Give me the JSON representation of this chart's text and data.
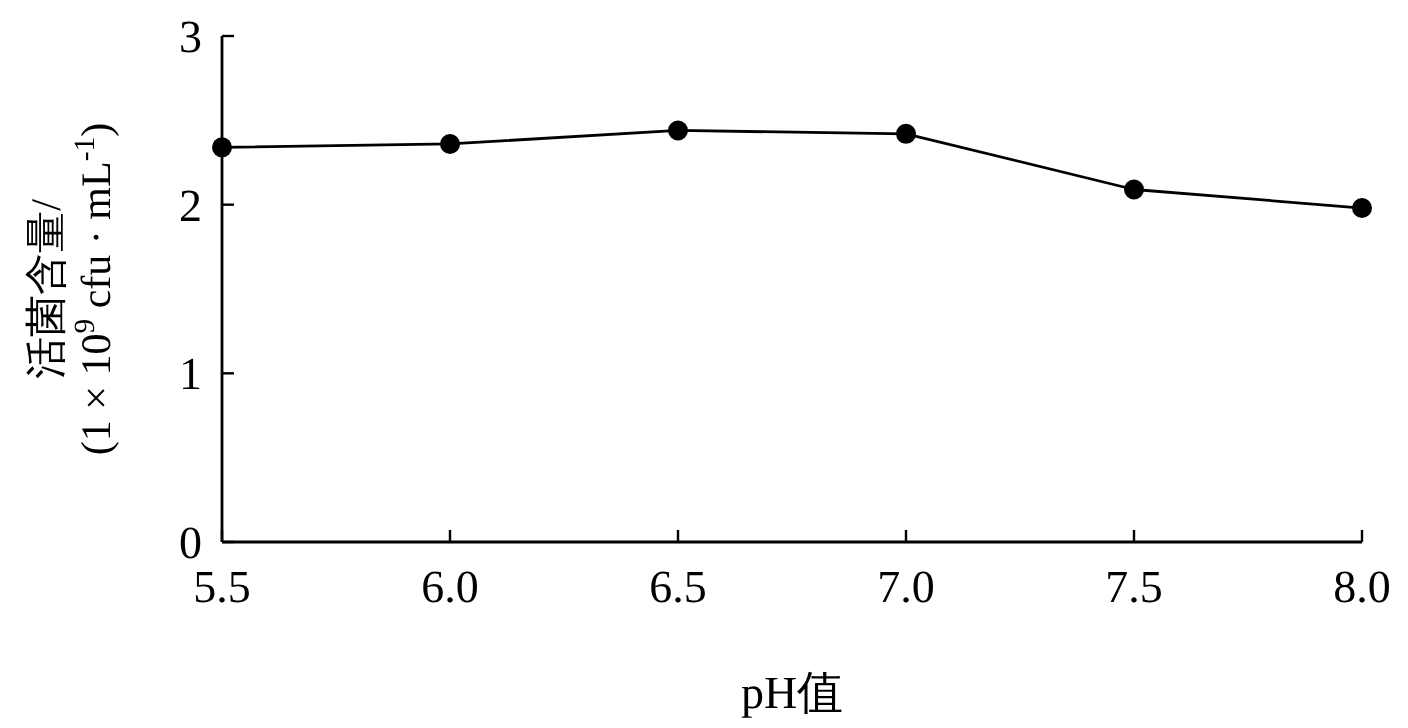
{
  "chart_data": {
    "type": "line",
    "xlabel": "pH值",
    "ylabel": "活菌含量/\n(1 × 10$^{9}$ cfu · mL$^{-1}$)",
    "x": [
      5.5,
      6.0,
      6.5,
      7.0,
      7.5,
      8.0
    ],
    "series": [
      {
        "color": "#000000",
        "values": [
          2.34,
          2.36,
          2.44,
          2.42,
          2.09,
          1.98
        ]
      }
    ],
    "xlim": [
      5.5,
      8.0
    ],
    "xticks": [
      {
        "value": 5.5,
        "label": "5.5"
      },
      {
        "value": 6.0,
        "label": "6.0"
      },
      {
        "value": 6.5,
        "label": "6.5"
      },
      {
        "value": 7.0,
        "label": "7.0"
      },
      {
        "value": 7.5,
        "label": "7.5"
      },
      {
        "value": 8.0,
        "label": "8.0"
      }
    ],
    "ylim": [
      0,
      3
    ],
    "yticks": [
      0,
      1,
      2,
      3
    ],
    "marker": "circle",
    "line_style": "solid"
  }
}
